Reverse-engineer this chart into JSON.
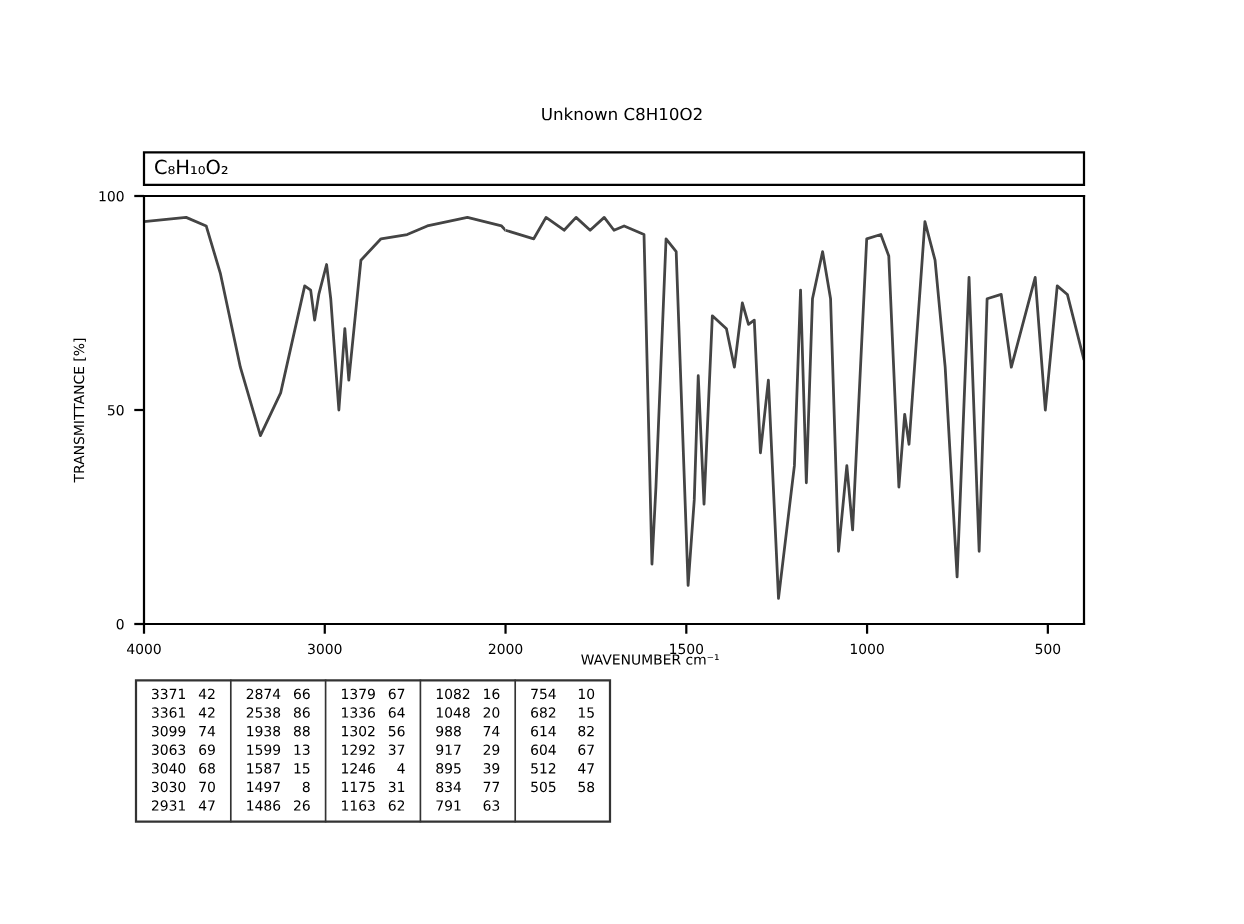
{
  "chart_data": [
    {
      "type": "line",
      "ylabel": "TRANSMITTANCE [%]",
      "annotations": [
        "C₈H₁₀O₂",
        "3371 42",
        "3361 42",
        "3099 74",
        "3063 69",
        "3040 68",
        "3030 70",
        "2931 47",
        "2874 66",
        "2538 86",
        "1938 88",
        "1599 13",
        "1587 15",
        "1497 8",
        "1486 26",
        "1379 67",
        "1336 64",
        "1302 56",
        "1292 37",
        "1246 4",
        "1175 31",
        "1163 62",
        "1082 16",
        "1048 20",
        "988 74",
        "917 29",
        "895 39",
        "834 77",
        "791 63",
        "754 10",
        "682 15",
        "614 82",
        "604 67",
        "512 47",
        "505 58"
      ],
      "xlim": [
        4000,
        2000
      ],
      "xticks": [
        4000,
        3000,
        2000
      ],
      "ylim": [
        0,
        100
      ],
      "yticks": [
        0,
        50,
        100
      ],
      "series": [
        {
          "color": "#444444",
          "x": [
            4000,
            3767,
            3656,
            3578,
            3467,
            3356,
            3244,
            3111,
            3078,
            3056,
            3033,
            2990,
            2967,
            2922,
            2889,
            2867,
            2800,
            2689,
            2544,
            2433,
            2211,
            2022,
            2000
          ],
          "values": [
            94,
            95,
            93,
            82,
            60,
            44,
            54,
            79,
            78,
            71,
            77,
            84,
            76,
            50,
            69,
            57,
            85,
            90,
            91,
            93,
            95,
            93,
            92
          ]
        }
      ]
    },
    {
      "type": "line",
      "title": "Unknown C8H10O2",
      "xlabel": "WAVENUMBER cm⁻¹",
      "xlim": [
        2000,
        400
      ],
      "xticks": [
        1500,
        1000,
        500
      ],
      "ylim": [
        0,
        100
      ],
      "tick_labels": "x",
      "series": [
        {
          "color": "#444444",
          "x": [
            2000,
            1922,
            1888,
            1838,
            1805,
            1766,
            1727,
            1700,
            1672,
            1617,
            1595,
            1584,
            1556,
            1528,
            1495,
            1478,
            1467,
            1451,
            1428,
            1389,
            1367,
            1345,
            1328,
            1312,
            1295,
            1273,
            1245,
            1201,
            1184,
            1168,
            1151,
            1123,
            1101,
            1079,
            1056,
            1040,
            1001,
            962,
            940,
            912,
            896,
            884,
            840,
            812,
            784,
            751,
            718,
            690,
            668,
            629,
            601,
            535,
            507,
            474,
            446,
            401
          ],
          "values": [
            92,
            90,
            95,
            92,
            95,
            92,
            95,
            92,
            93,
            91,
            14,
            32,
            90,
            87,
            9,
            29,
            58,
            28,
            72,
            69,
            60,
            75,
            70,
            71,
            40,
            57,
            6,
            37,
            78,
            33,
            76,
            87,
            76,
            17,
            37,
            22,
            90,
            91,
            86,
            32,
            49,
            42,
            94,
            85,
            60,
            11,
            81,
            17,
            76,
            77,
            60,
            81,
            50,
            79,
            77,
            62
          ]
        }
      ]
    }
  ]
}
